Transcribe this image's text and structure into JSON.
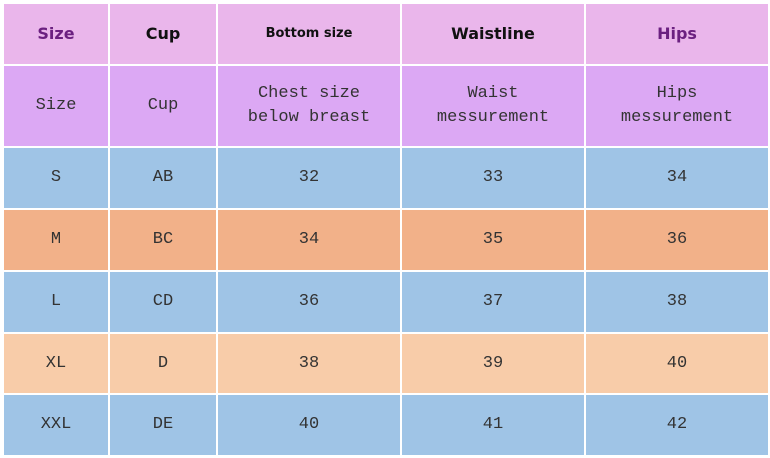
{
  "header": [
    "Size",
    "Cup",
    "Bottom size",
    "Waistline",
    "Hips"
  ],
  "subheader": [
    "Size",
    "Cup",
    "Chest size below breast",
    "Waist messurement",
    "Hips messurement"
  ],
  "rows": [
    [
      "S",
      "AB",
      32,
      33,
      34
    ],
    [
      "M",
      "BC",
      34,
      35,
      36
    ],
    [
      "L",
      "CD",
      36,
      37,
      38
    ],
    [
      "XL",
      "D",
      38,
      39,
      40
    ],
    [
      "XXL",
      "DE",
      40,
      41,
      42
    ]
  ]
}
